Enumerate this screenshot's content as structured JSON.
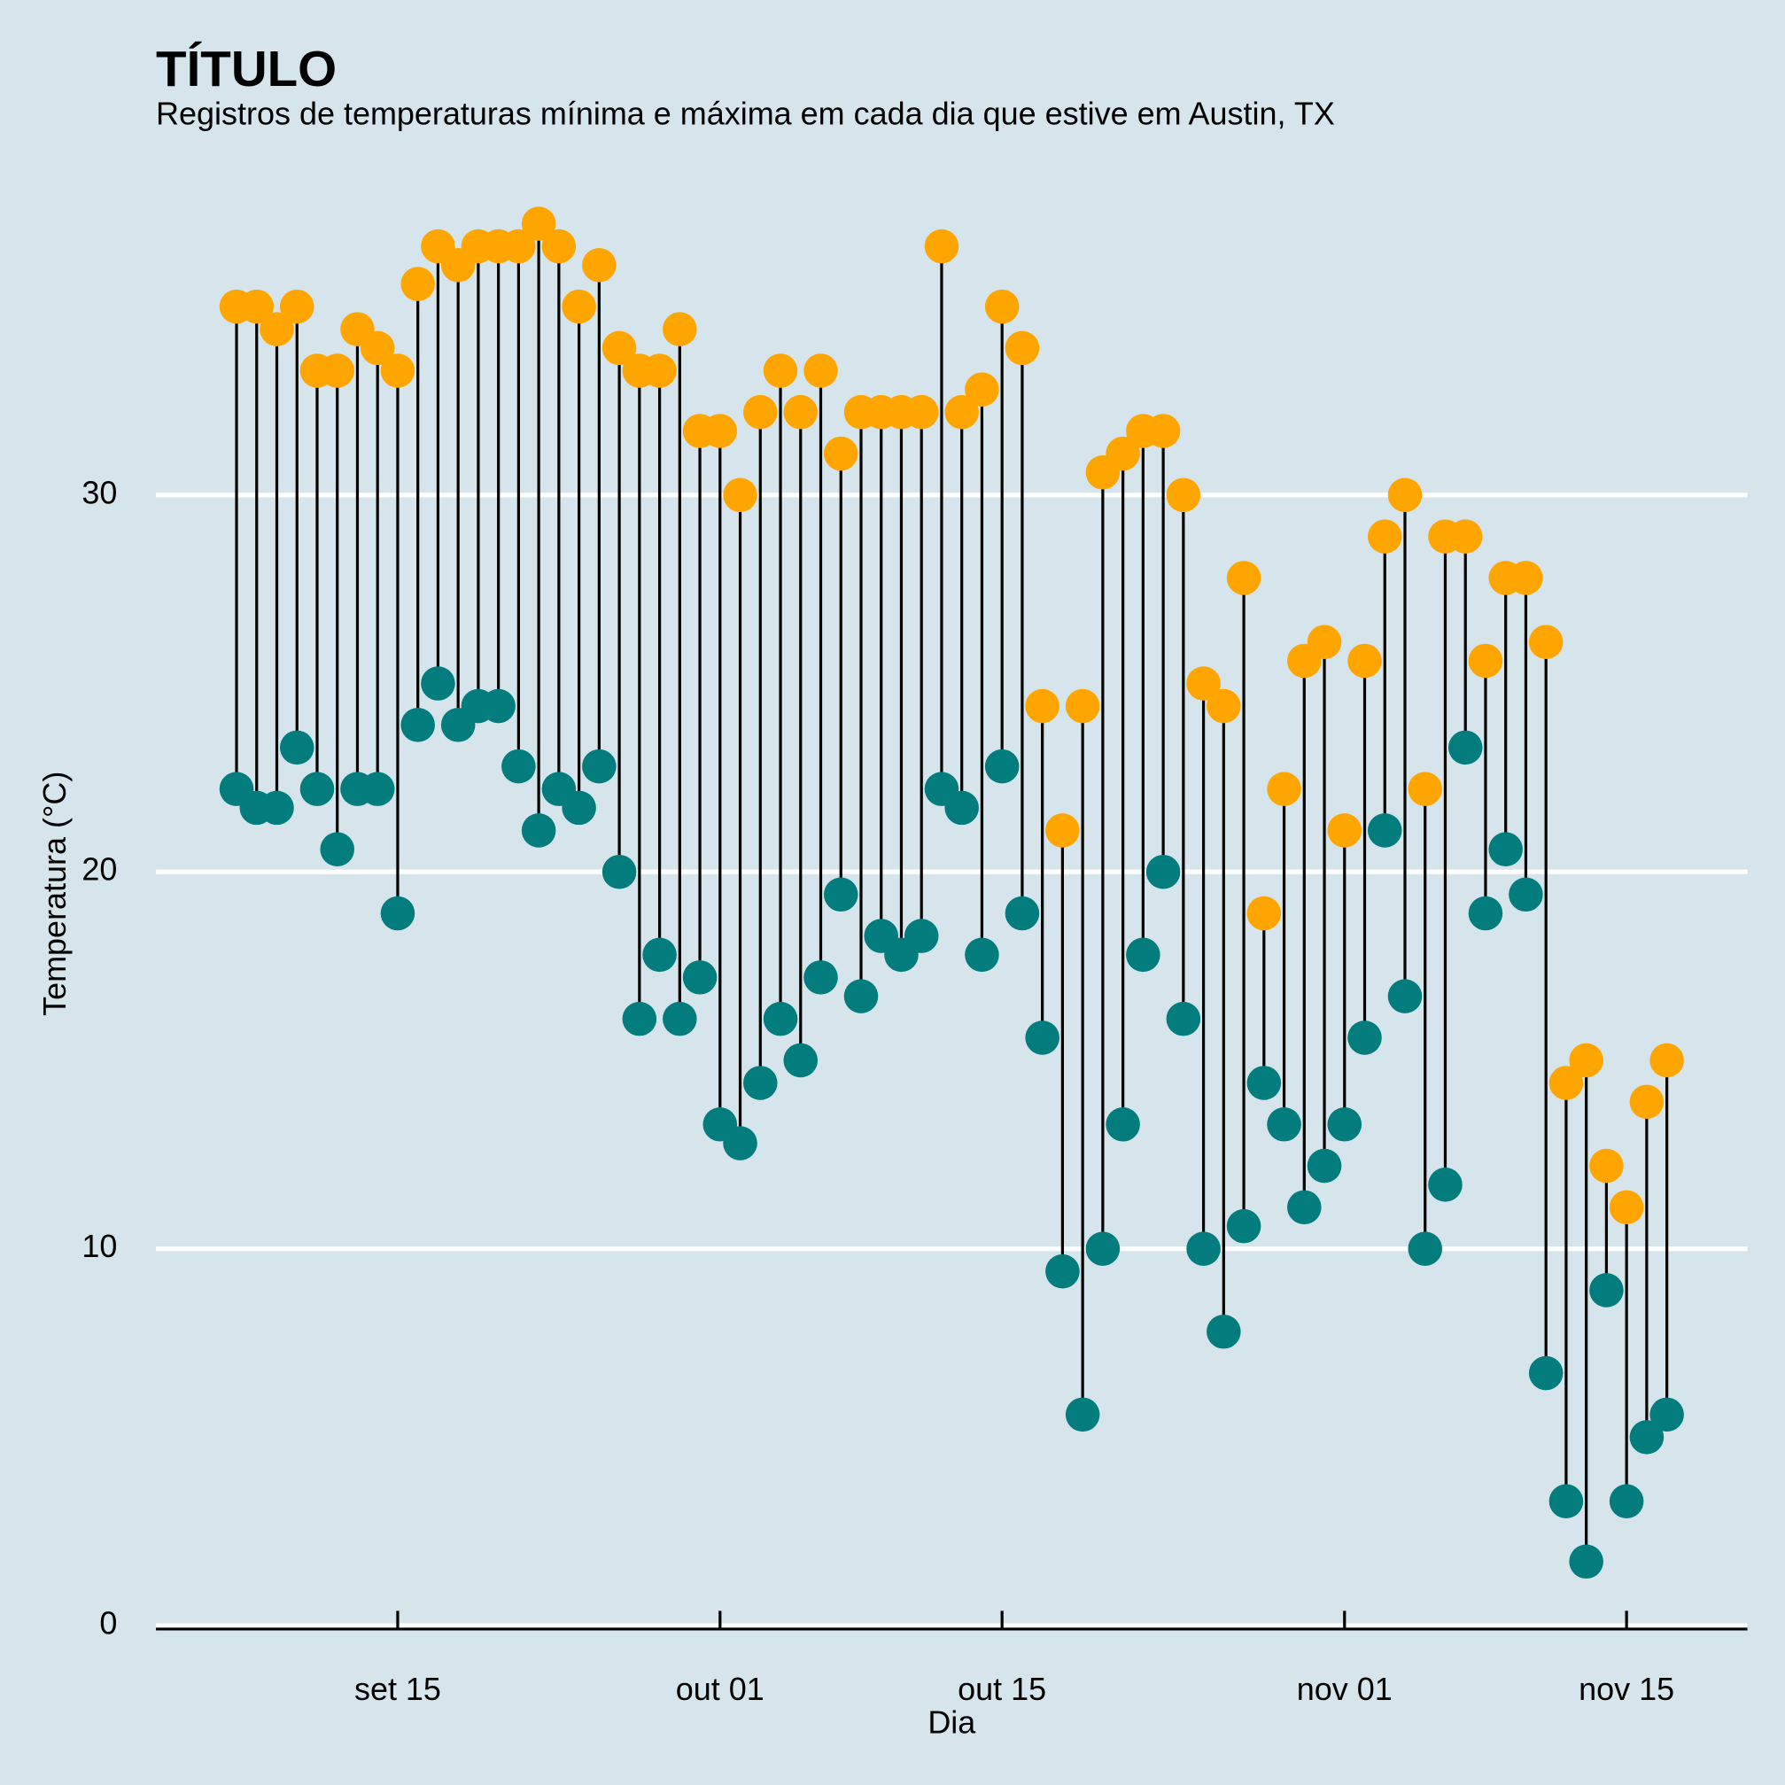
{
  "chart_data": {
    "type": "dumbbell",
    "title": "TÍTULO",
    "subtitle": "Registros de temperaturas mínima e máxima em cada dia que estive em Austin, TX",
    "x_label": "Dia",
    "y_label": "Temperatura (°C)",
    "x": [
      "09-07",
      "09-08",
      "09-09",
      "09-10",
      "09-11",
      "09-12",
      "09-13",
      "09-14",
      "09-15",
      "09-16",
      "09-17",
      "09-18",
      "09-19",
      "09-20",
      "09-21",
      "09-22",
      "09-23",
      "09-24",
      "09-25",
      "09-26",
      "09-27",
      "09-28",
      "09-29",
      "09-30",
      "10-01",
      "10-02",
      "10-03",
      "10-04",
      "10-05",
      "10-06",
      "10-07",
      "10-08",
      "10-09",
      "10-10",
      "10-11",
      "10-12",
      "10-13",
      "10-14",
      "10-15",
      "10-16",
      "10-17",
      "10-18",
      "10-19",
      "10-20",
      "10-21",
      "10-22",
      "10-23",
      "10-24",
      "10-25",
      "10-26",
      "10-27",
      "10-28",
      "10-29",
      "10-30",
      "10-31",
      "11-01",
      "11-02",
      "11-03",
      "11-04",
      "11-05",
      "11-06",
      "11-07",
      "11-08",
      "11-09",
      "11-10",
      "11-11",
      "11-12",
      "11-13",
      "11-14",
      "11-15",
      "11-16",
      "11-17"
    ],
    "series": [
      {
        "color": "#027c7c",
        "values": [
          22.2,
          21.7,
          21.7,
          23.3,
          22.2,
          20.6,
          22.2,
          22.2,
          18.9,
          23.9,
          25.0,
          23.9,
          24.4,
          24.4,
          22.8,
          21.1,
          22.2,
          21.7,
          22.8,
          20.0,
          16.1,
          17.8,
          16.1,
          17.2,
          13.3,
          12.8,
          14.4,
          16.1,
          15.0,
          17.2,
          19.4,
          16.7,
          18.3,
          17.8,
          18.3,
          22.2,
          21.7,
          17.8,
          22.8,
          18.9,
          15.6,
          9.4,
          5.6,
          10.0,
          13.3,
          17.8,
          20.0,
          16.1,
          10.0,
          7.8,
          10.6,
          14.4,
          13.3,
          11.1,
          12.2,
          13.3,
          15.6,
          21.1,
          16.7,
          10.0,
          11.7,
          23.3,
          18.9,
          20.6,
          19.4,
          6.7,
          3.3,
          1.7,
          8.9,
          3.3,
          5.0,
          5.6
        ]
      },
      {
        "color": "#ffa500",
        "values": [
          35.0,
          35.0,
          34.4,
          35.0,
          33.3,
          33.3,
          34.4,
          33.9,
          33.3,
          35.6,
          36.6,
          36.1,
          36.6,
          36.6,
          36.6,
          37.2,
          36.6,
          35.0,
          36.1,
          33.9,
          33.3,
          33.3,
          34.4,
          31.7,
          31.7,
          30.0,
          32.2,
          33.3,
          32.2,
          33.3,
          31.1,
          32.2,
          32.2,
          32.2,
          32.2,
          36.6,
          32.2,
          32.8,
          35.0,
          33.9,
          24.4,
          21.1,
          24.4,
          30.6,
          31.1,
          31.7,
          31.7,
          30.0,
          25.0,
          24.4,
          27.8,
          18.9,
          22.2,
          25.6,
          26.1,
          21.1,
          25.6,
          28.9,
          30.0,
          22.2,
          28.9,
          28.9,
          25.6,
          27.8,
          27.8,
          26.1,
          14.4,
          15.0,
          12.2,
          11.1,
          13.9,
          15.0
        ]
      }
    ],
    "xlim": [
      "09-03",
      "11-21"
    ],
    "xticks": [
      {
        "value": "09-15",
        "label": "set 15"
      },
      {
        "value": "10-01",
        "label": "out 01"
      },
      {
        "value": "10-15",
        "label": "out 15"
      },
      {
        "value": "11-01",
        "label": "nov 01"
      },
      {
        "value": "11-15",
        "label": "nov 15"
      }
    ],
    "ylim": [
      0,
      38
    ],
    "yticks": [
      0,
      10,
      20,
      30
    ],
    "grid": true
  }
}
